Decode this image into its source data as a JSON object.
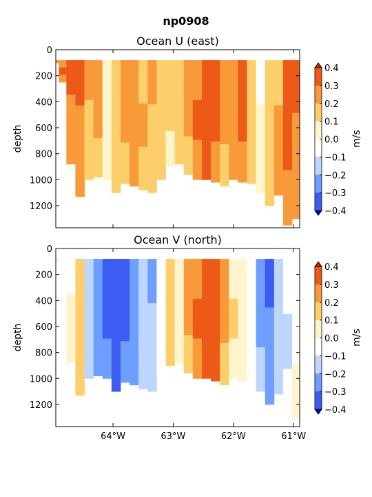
{
  "figure_title": "np0908",
  "colors": {
    "levels": [
      -0.4,
      -0.3,
      -0.2,
      -0.1,
      0.0,
      0.1,
      0.2,
      0.3,
      0.4
    ],
    "fills": [
      "#0000d4",
      "#3c5cf2",
      "#6e9eff",
      "#bcd6ff",
      "#ffffff",
      "#fff5cc",
      "#fdcf6a",
      "#f99a3a",
      "#ed5a18",
      "#c42010"
    ],
    "ticks": [
      "0.4",
      "0.3",
      "0.2",
      "0.1",
      "0.0",
      "−0.1",
      "−0.2",
      "−0.3",
      "−0.4"
    ]
  },
  "chart_data": [
    {
      "type": "heatmap",
      "title": "Ocean U (east)",
      "xlabel": "",
      "ylabel": "depth",
      "colorbar_label": "m/s",
      "xlim": [
        -64.95,
        -60.9
      ],
      "ylim": [
        1370,
        0
      ],
      "xticks": [
        -64,
        -63,
        -62,
        -61
      ],
      "xtick_labels": [
        "",
        "",
        "",
        ""
      ],
      "yticks": [
        0,
        200,
        400,
        600,
        800,
        1000,
        1200
      ],
      "ytick_labels": [
        "0",
        "200",
        "400",
        "600",
        "800",
        "1000",
        "1200"
      ],
      "surface_depth": 80,
      "columns": [
        {
          "lon": -64.95,
          "max_depth": 100,
          "v": [
            0.22,
            0.28,
            0.22
          ]
        },
        {
          "lon": -64.85,
          "max_depth": 250,
          "v": [
            0.28,
            0.3,
            0.25
          ]
        },
        {
          "lon": -64.7,
          "max_depth": 880,
          "v": [
            0.3,
            0.28,
            0.25
          ]
        },
        {
          "lon": -64.55,
          "max_depth": 1130,
          "v": [
            0.35,
            0.25,
            0.22
          ]
        },
        {
          "lon": -64.4,
          "max_depth": 1000,
          "v": [
            0.2,
            0.15,
            0.12
          ]
        },
        {
          "lon": -64.25,
          "max_depth": 980,
          "v": [
            0.2,
            0.22,
            0.18
          ]
        },
        {
          "lon": -64.1,
          "max_depth": 1000,
          "v": [
            0.08,
            0.05,
            0.05
          ]
        },
        {
          "lon": -63.95,
          "max_depth": 1100,
          "v": [
            0.18,
            0.15,
            0.12
          ]
        },
        {
          "lon": -63.8,
          "max_depth": 1030,
          "v": [
            0.2,
            0.22,
            0.15
          ]
        },
        {
          "lon": -63.65,
          "max_depth": 1050,
          "v": [
            0.25,
            0.22,
            0.2
          ]
        },
        {
          "lon": -63.5,
          "max_depth": 1080,
          "v": [
            0.18,
            0.2,
            0.15
          ]
        },
        {
          "lon": -63.35,
          "max_depth": 1100,
          "v": [
            0.2,
            0.15,
            0.18
          ]
        },
        {
          "lon": -63.2,
          "max_depth": 1000,
          "v": [
            0.15,
            0.12,
            0.1
          ]
        },
        {
          "lon": -63.05,
          "max_depth": 900,
          "v": [
            0.12,
            0.1,
            0.08
          ]
        },
        {
          "lon": -62.9,
          "max_depth": 880,
          "v": [
            0.15,
            0.18,
            0.12
          ]
        },
        {
          "lon": -62.75,
          "max_depth": 960,
          "v": [
            0.22,
            0.2,
            0.15
          ]
        },
        {
          "lon": -62.6,
          "max_depth": 1000,
          "v": [
            0.28,
            0.32,
            0.25
          ]
        },
        {
          "lon": -62.45,
          "max_depth": 1000,
          "v": [
            0.35,
            0.38,
            0.32
          ]
        },
        {
          "lon": -62.3,
          "max_depth": 1020,
          "v": [
            0.3,
            0.32,
            0.28
          ]
        },
        {
          "lon": -62.15,
          "max_depth": 1050,
          "v": [
            0.22,
            0.2,
            0.18
          ]
        },
        {
          "lon": -62.0,
          "max_depth": 1000,
          "v": [
            0.25,
            0.28,
            0.22
          ]
        },
        {
          "lon": -61.85,
          "max_depth": 1020,
          "v": [
            0.35,
            0.3,
            0.25
          ]
        },
        {
          "lon": -61.7,
          "max_depth": 1030,
          "v": [
            0.15,
            0.12,
            0.1
          ]
        },
        {
          "lon": -61.55,
          "max_depth": 1100,
          "v": [
            -0.05,
            0.05,
            0.08
          ]
        },
        {
          "lon": -61.4,
          "max_depth": 1200,
          "v": [
            0.1,
            0.15,
            0.12
          ]
        },
        {
          "lon": -61.25,
          "max_depth": 1120,
          "v": [
            0.15,
            0.2,
            0.22
          ]
        },
        {
          "lon": -61.1,
          "max_depth": 1350,
          "v": [
            0.38,
            0.3,
            0.25
          ]
        },
        {
          "lon": -60.95,
          "max_depth": 1300,
          "v": [
            0.3,
            0.28,
            0.25
          ]
        }
      ]
    },
    {
      "type": "heatmap",
      "title": "Ocean V (north)",
      "xlabel": "",
      "ylabel": "depth",
      "colorbar_label": "m/s",
      "xlim": [
        -64.95,
        -60.9
      ],
      "ylim": [
        1370,
        0
      ],
      "xticks": [
        -64,
        -63,
        -62,
        -61
      ],
      "xtick_labels": [
        "64°W",
        "63°W",
        "62°W",
        "61°W"
      ],
      "yticks": [
        0,
        200,
        400,
        600,
        800,
        1000,
        1200
      ],
      "ytick_labels": [
        "0",
        "200",
        "400",
        "600",
        "800",
        "1000",
        "1200"
      ],
      "surface_depth": 80,
      "columns": [
        {
          "lon": -64.95,
          "max_depth": 100,
          "v": [
            -0.12,
            -0.1,
            -0.08
          ]
        },
        {
          "lon": -64.85,
          "max_depth": 250,
          "v": [
            -0.1,
            -0.05,
            -0.05
          ]
        },
        {
          "lon": -64.7,
          "max_depth": 880,
          "v": [
            -0.05,
            0.05,
            0.08
          ]
        },
        {
          "lon": -64.55,
          "max_depth": 1130,
          "v": [
            0.12,
            0.1,
            0.15
          ]
        },
        {
          "lon": -64.4,
          "max_depth": 1000,
          "v": [
            -0.15,
            -0.18,
            -0.12
          ]
        },
        {
          "lon": -64.25,
          "max_depth": 980,
          "v": [
            -0.28,
            -0.3,
            -0.25
          ]
        },
        {
          "lon": -64.1,
          "max_depth": 1000,
          "v": [
            -0.38,
            -0.32,
            -0.3
          ]
        },
        {
          "lon": -63.95,
          "max_depth": 1100,
          "v": [
            -0.4,
            -0.38,
            -0.32
          ]
        },
        {
          "lon": -63.8,
          "max_depth": 1030,
          "v": [
            -0.38,
            -0.35,
            -0.3
          ]
        },
        {
          "lon": -63.65,
          "max_depth": 1050,
          "v": [
            -0.3,
            -0.25,
            -0.22
          ]
        },
        {
          "lon": -63.5,
          "max_depth": 1080,
          "v": [
            -0.18,
            -0.2,
            -0.15
          ]
        },
        {
          "lon": -63.35,
          "max_depth": 1100,
          "v": [
            -0.22,
            -0.2,
            -0.18
          ]
        },
        {
          "lon": -63.2,
          "max_depth": 1000,
          "v": [
            -0.1,
            -0.05,
            -0.05
          ]
        },
        {
          "lon": -63.05,
          "max_depth": 900,
          "v": [
            0.15,
            0.12,
            0.1
          ]
        },
        {
          "lon": -62.9,
          "max_depth": 880,
          "v": [
            0.08,
            0.05,
            0.05
          ]
        },
        {
          "lon": -62.75,
          "max_depth": 960,
          "v": [
            0.22,
            0.2,
            0.15
          ]
        },
        {
          "lon": -62.6,
          "max_depth": 1000,
          "v": [
            0.28,
            0.3,
            0.28
          ]
        },
        {
          "lon": -62.45,
          "max_depth": 1000,
          "v": [
            0.35,
            0.38,
            0.32
          ]
        },
        {
          "lon": -62.3,
          "max_depth": 1020,
          "v": [
            0.3,
            0.35,
            0.3
          ]
        },
        {
          "lon": -62.15,
          "max_depth": 1050,
          "v": [
            0.22,
            0.2,
            0.18
          ]
        },
        {
          "lon": -62.0,
          "max_depth": 1000,
          "v": [
            0.08,
            0.1,
            0.05
          ]
        },
        {
          "lon": -61.85,
          "max_depth": 1020,
          "v": [
            0.05,
            0.08,
            0.05
          ]
        },
        {
          "lon": -61.7,
          "max_depth": 1030,
          "v": [
            -0.05,
            -0.08,
            -0.05
          ]
        },
        {
          "lon": -61.55,
          "max_depth": 1100,
          "v": [
            -0.28,
            -0.25,
            -0.15
          ]
        },
        {
          "lon": -61.4,
          "max_depth": 1200,
          "v": [
            -0.32,
            -0.3,
            -0.22
          ]
        },
        {
          "lon": -61.25,
          "max_depth": 1120,
          "v": [
            -0.15,
            -0.2,
            -0.12
          ]
        },
        {
          "lon": -61.1,
          "max_depth": 1350,
          "v": [
            -0.1,
            -0.15,
            -0.1
          ]
        },
        {
          "lon": -60.95,
          "max_depth": 1300,
          "v": [
            -0.05,
            -0.05,
            0.05
          ]
        }
      ]
    }
  ]
}
